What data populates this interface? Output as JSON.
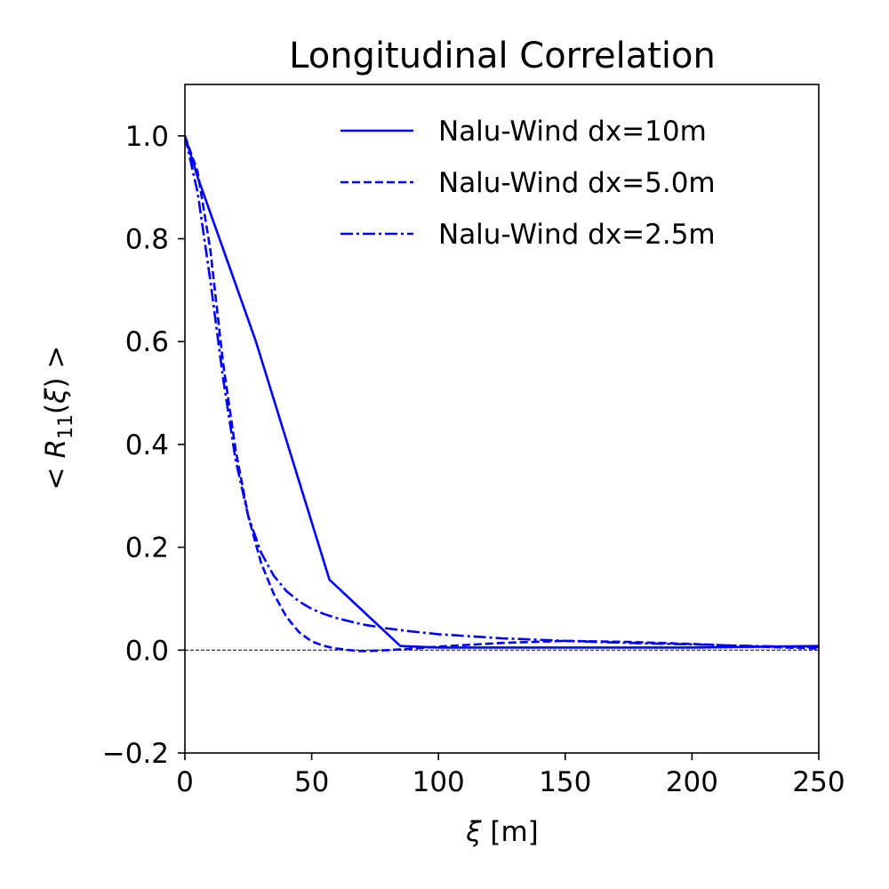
{
  "chart_data": {
    "type": "line",
    "title": "Longitudinal Correlation",
    "xlabel_symbol": "ξ",
    "xlabel_unit": " [m]",
    "ylabel_prefix": "< ",
    "ylabel_symbol": "R",
    "ylabel_subscript": "11",
    "ylabel_arg_open": "(",
    "ylabel_arg_symbol": "ξ",
    "ylabel_arg_close": ")",
    "ylabel_suffix": " >",
    "xlim": [
      0,
      250
    ],
    "ylim": [
      -0.2,
      1.1
    ],
    "xticks": [
      0,
      50,
      100,
      150,
      200,
      250
    ],
    "xtick_labels": [
      "0",
      "50",
      "100",
      "150",
      "200",
      "250"
    ],
    "yticks": [
      -0.2,
      0.0,
      0.2,
      0.4,
      0.6,
      0.8,
      1.0
    ],
    "ytick_labels": [
      "−0.2",
      "0.0",
      "0.2",
      "0.4",
      "0.6",
      "0.8",
      "1.0"
    ],
    "reference_line": {
      "y": 0.0,
      "style": "dashed",
      "color": "#000000"
    },
    "legend_position": "top-right",
    "grid": false,
    "series": [
      {
        "name": "Nalu-Wind dx=10m",
        "style": "solid",
        "color": "#0000ff",
        "x": [
          0,
          5,
          28,
          57,
          85,
          100,
          150,
          200,
          250
        ],
        "y": [
          1.0,
          0.92,
          0.6,
          0.137,
          0.008,
          0.005,
          0.005,
          0.005,
          0.008
        ]
      },
      {
        "name": "Nalu-Wind dx=5.0m",
        "style": "dashed",
        "color": "#0000ff",
        "x": [
          0,
          5,
          10,
          15,
          20,
          25,
          30,
          35,
          40,
          45,
          50,
          55,
          60,
          65,
          70,
          75,
          80,
          90,
          100,
          125,
          150,
          175,
          200,
          225,
          250
        ],
        "y": [
          1.0,
          0.93,
          0.78,
          0.56,
          0.39,
          0.26,
          0.17,
          0.11,
          0.065,
          0.035,
          0.017,
          0.008,
          0.003,
          0.0,
          -0.002,
          -0.001,
          0.0,
          0.003,
          0.007,
          0.014,
          0.018,
          0.016,
          0.012,
          0.007,
          0.003
        ]
      },
      {
        "name": "Nalu-Wind dx=2.5m",
        "style": "dashdot",
        "color": "#0000ff",
        "x": [
          0,
          5,
          10,
          15,
          20,
          25,
          30,
          35,
          40,
          45,
          50,
          55,
          60,
          70,
          80,
          90,
          100,
          125,
          150,
          175,
          200,
          225,
          250
        ],
        "y": [
          1.0,
          0.89,
          0.72,
          0.53,
          0.37,
          0.26,
          0.19,
          0.145,
          0.115,
          0.095,
          0.08,
          0.07,
          0.062,
          0.05,
          0.042,
          0.036,
          0.031,
          0.023,
          0.018,
          0.014,
          0.011,
          0.008,
          0.006
        ]
      }
    ]
  }
}
